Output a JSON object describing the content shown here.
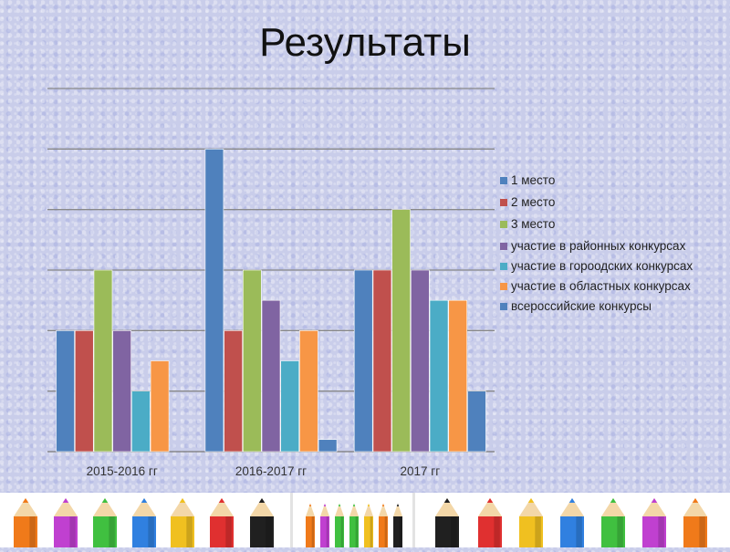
{
  "title": "Результаты",
  "chart_data": {
    "type": "bar",
    "categories": [
      "2015-2016 гг",
      "2016-2017 гг",
      "2017 гг"
    ],
    "ylim": [
      0,
      6
    ],
    "grid": true,
    "legend_position": "right",
    "series": [
      {
        "name": "1 место",
        "color": "#4f81bd",
        "values": [
          2,
          5,
          3
        ]
      },
      {
        "name": "2 место",
        "color": "#c0504d",
        "values": [
          2,
          2,
          3
        ]
      },
      {
        "name": "3 место",
        "color": "#9bbb59",
        "values": [
          3,
          3,
          4
        ]
      },
      {
        "name": "участие в районных конкурсах",
        "color": "#8064a2",
        "values": [
          2,
          2.5,
          3
        ]
      },
      {
        "name": "участие в гороодских конкурсах",
        "color": "#4bacc6",
        "values": [
          1,
          1.5,
          2.5
        ]
      },
      {
        "name": "участие в областных конкурсах",
        "color": "#f79646",
        "values": [
          1.5,
          2,
          2.5
        ]
      },
      {
        "name": "всероссийские конкурсы",
        "color": "#4f81bd",
        "values": [
          0,
          0.2,
          1
        ]
      }
    ]
  },
  "decoration": {
    "pencil_colors": [
      "#f07a1a",
      "#c040d0",
      "#40c040",
      "#3080e0",
      "#f0c020",
      "#e03030",
      "#202020",
      "#f07a1a",
      "#c040d0",
      "#40c040",
      "#40c040",
      "#f0c020",
      "#f07a1a",
      "#202020",
      "#202020",
      "#e03030",
      "#f0c020",
      "#3080e0",
      "#40c040",
      "#c040d0",
      "#f07a1a"
    ]
  }
}
